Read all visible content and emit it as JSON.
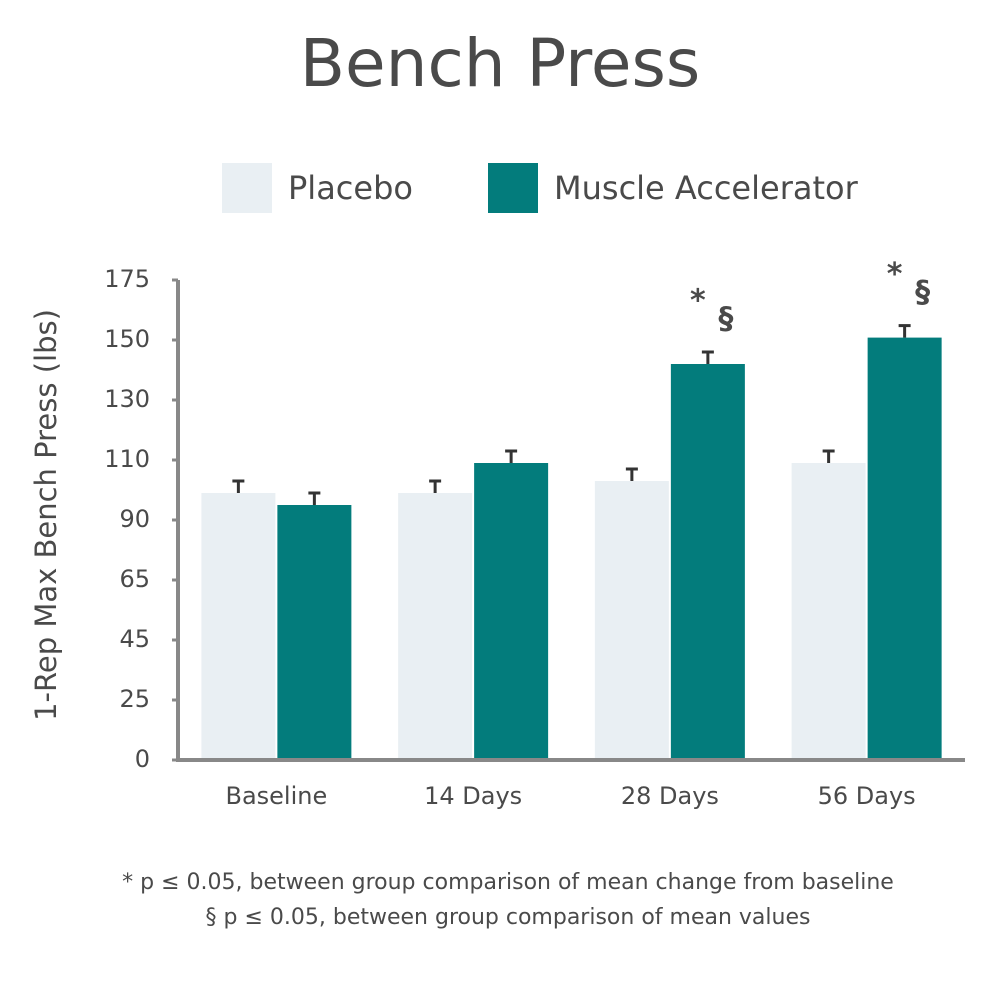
{
  "chart_data": {
    "type": "bar",
    "title": "Bench Press",
    "y_label": "1-Rep Max Bench Press (lbs)",
    "categories": [
      "Baseline",
      "14 Days",
      "28 Days",
      "56 Days"
    ],
    "series": [
      {
        "name": "Placebo",
        "color": "#e9eff3",
        "values": [
          99,
          99,
          103,
          109
        ],
        "errors": [
          4,
          4,
          4,
          4
        ],
        "significance": [
          [],
          [],
          [],
          []
        ]
      },
      {
        "name": "Muscle Accelerator",
        "color": "#037c7c",
        "values": [
          95,
          109,
          142,
          151
        ],
        "errors": [
          4,
          4,
          4,
          5
        ],
        "significance": [
          [],
          [],
          [
            "*",
            "§"
          ],
          [
            "*",
            "§"
          ]
        ]
      }
    ],
    "ylim": [
      0,
      175
    ],
    "yticks": [
      0,
      25,
      45,
      65,
      90,
      110,
      130,
      150,
      175
    ],
    "legend": "top",
    "notes": [
      "* p ≤ 0.05, between group comparison of mean change from baseline",
      "§ p ≤ 0.05, between group comparison of mean values"
    ]
  }
}
